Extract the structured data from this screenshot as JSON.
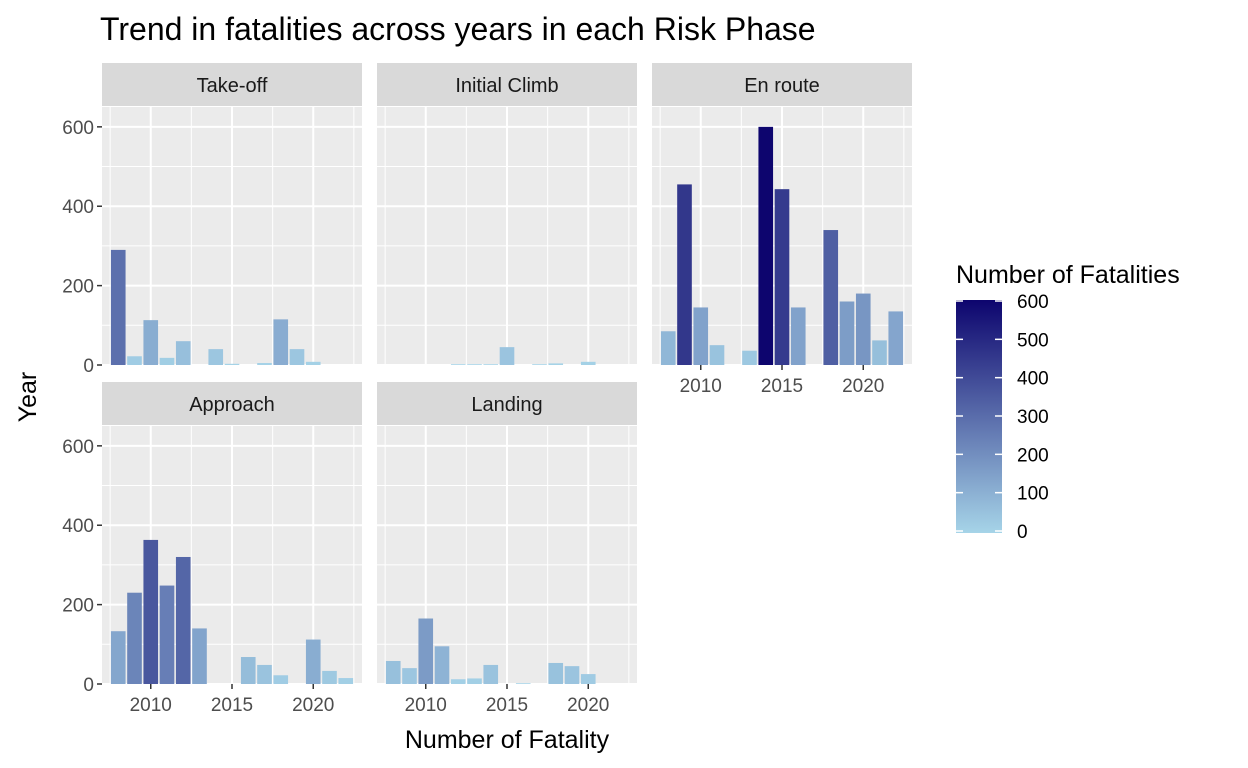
{
  "chart_data": {
    "type": "bar",
    "title": "Trend in fatalities across years in each Risk Phase",
    "xlabel": "Number of Fatality",
    "ylabel": "Year",
    "x_ticks": [
      "2010",
      "2015",
      "2020"
    ],
    "y_ticks": [
      "0",
      "200",
      "400",
      "600"
    ],
    "xlim": [
      2007,
      2023
    ],
    "ylim": [
      0,
      650
    ],
    "grid": true,
    "legend": {
      "title": "Number of Fatalities",
      "ticks": [
        "0",
        "100",
        "200",
        "300",
        "400",
        "500",
        "600"
      ],
      "low_color": "#a6d4e8",
      "high_color": "#0d056e",
      "position": "right"
    },
    "facets": [
      {
        "name": "Take-off",
        "x": [
          2008,
          2009,
          2010,
          2011,
          2012,
          2014,
          2015,
          2017,
          2018,
          2019,
          2020
        ],
        "values": [
          290,
          22,
          113,
          18,
          60,
          40,
          3,
          5,
          115,
          40,
          8
        ]
      },
      {
        "name": "Initial Climb",
        "x": [
          2012,
          2013,
          2014,
          2015,
          2017,
          2018,
          2020
        ],
        "values": [
          2,
          2,
          2,
          45,
          2,
          4,
          8
        ]
      },
      {
        "name": "En route",
        "x": [
          2008,
          2009,
          2010,
          2011,
          2013,
          2014,
          2015,
          2016,
          2018,
          2019,
          2020,
          2021,
          2022
        ],
        "values": [
          85,
          455,
          145,
          50,
          36,
          600,
          443,
          145,
          340,
          160,
          180,
          62,
          135
        ]
      },
      {
        "name": "Approach",
        "x": [
          2008,
          2009,
          2010,
          2011,
          2012,
          2013,
          2016,
          2017,
          2018,
          2020,
          2021,
          2022
        ],
        "values": [
          133,
          230,
          363,
          248,
          320,
          140,
          68,
          48,
          22,
          112,
          33,
          15
        ]
      },
      {
        "name": "Landing",
        "x": [
          2008,
          2009,
          2010,
          2011,
          2012,
          2013,
          2014,
          2016,
          2018,
          2019,
          2020
        ],
        "values": [
          58,
          40,
          165,
          95,
          12,
          14,
          48,
          2,
          53,
          45,
          25
        ]
      }
    ]
  }
}
